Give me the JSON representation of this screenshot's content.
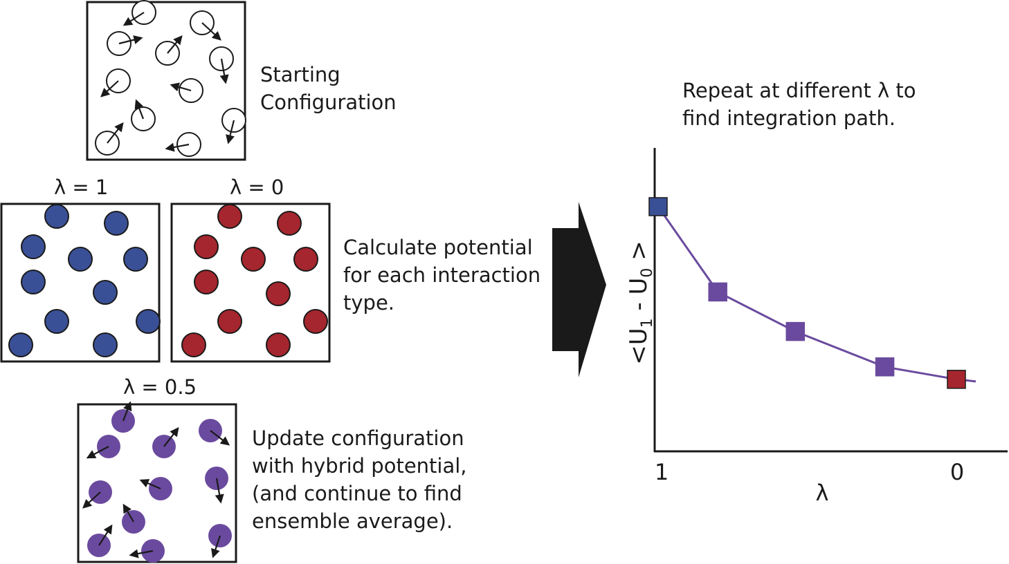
{
  "panels": {
    "start": {
      "caption": [
        "Starting",
        "Configuration"
      ]
    },
    "interaction": {
      "caption": [
        "Calculate potential",
        "for each interaction",
        "type."
      ],
      "lambda_one_label": "λ = 1",
      "lambda_zero_label": "λ = 0"
    },
    "hybrid": {
      "lambda_label": "λ = 0.5",
      "caption": [
        "Update configuration",
        "with hybrid potential,",
        "(and continue to find",
        "ensemble average)."
      ]
    }
  },
  "plot": {
    "caption": [
      "Repeat at different λ  to",
      "find integration path."
    ],
    "ylabel_parts": [
      "<U",
      "1",
      " - U",
      "0",
      " >"
    ],
    "xlabel": "λ",
    "x_tick_left": "1",
    "x_tick_right": "0"
  },
  "chart_data": {
    "type": "line",
    "x_direction": "decreasing λ from 1 to 0",
    "points": [
      {
        "lambda": 1.0,
        "value": 1.0,
        "color": "#3a5096"
      },
      {
        "lambda": 0.8,
        "value": 0.59,
        "color": "#6a4a9e"
      },
      {
        "lambda": 0.54,
        "value": 0.4,
        "color": "#6a4a9e"
      },
      {
        "lambda": 0.24,
        "value": 0.23,
        "color": "#6a4a9e"
      },
      {
        "lambda": 0.0,
        "value": 0.17,
        "color": "#a5262e"
      }
    ],
    "line_color": "#6a4a9e"
  },
  "colors": {
    "blue": "#3a5096",
    "red": "#a5262e",
    "purple": "#6a4a9e",
    "arrow": "#1a1a1a"
  }
}
